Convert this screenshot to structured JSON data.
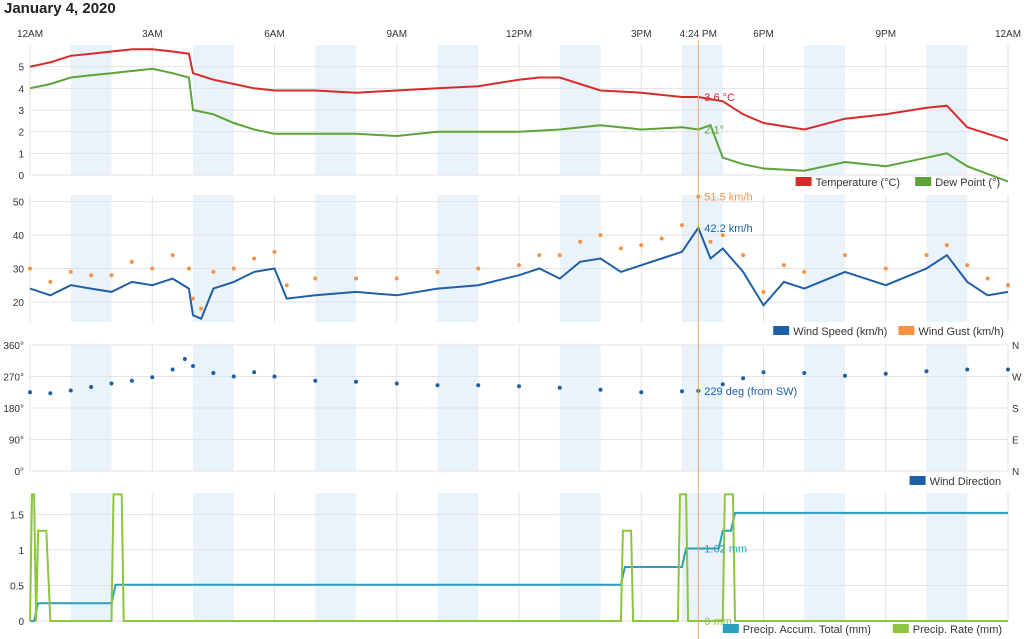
{
  "title": "January 4, 2020",
  "cursor": {
    "label": "4:24 PM",
    "hour": 16.4
  },
  "time_axis": {
    "ticks": [
      {
        "h": 0,
        "label": "12AM"
      },
      {
        "h": 3,
        "label": "3AM"
      },
      {
        "h": 6,
        "label": "6AM"
      },
      {
        "h": 9,
        "label": "9AM"
      },
      {
        "h": 12,
        "label": "12PM"
      },
      {
        "h": 15,
        "label": "3PM"
      },
      {
        "h": 18,
        "label": "6PM"
      },
      {
        "h": 21,
        "label": "9PM"
      },
      {
        "h": 24,
        "label": "12AM"
      }
    ]
  },
  "colors": {
    "temperature": "#d62b2b",
    "dew": "#5ea33a",
    "speed": "#1f5fa8",
    "gust": "#f59343",
    "direction": "#1f5fa8",
    "accum": "#2a9fbc",
    "rate": "#8cc63f",
    "cursor": "#f0a868",
    "band": "#eaf2fa",
    "grid": "#e3e3e3"
  },
  "chart_data": [
    {
      "type": "line",
      "name": "temperature-dewpoint",
      "ylim": [
        0,
        6
      ],
      "yticks": [
        "0",
        "1",
        "2",
        "3",
        "4",
        "5"
      ],
      "series": [
        {
          "name": "Temperature (°C)",
          "key": "temperature",
          "x": [
            0,
            0.5,
            1,
            1.5,
            2,
            2.5,
            3,
            3.5,
            3.9,
            4,
            4.5,
            5,
            5.5,
            6,
            7,
            8,
            9,
            10,
            11,
            12,
            12.5,
            13,
            14,
            15,
            16,
            16.4,
            17,
            17.5,
            18,
            19,
            20,
            21,
            22,
            22.5,
            23,
            24
          ],
          "y": [
            5,
            5.2,
            5.5,
            5.6,
            5.7,
            5.8,
            5.8,
            5.7,
            5.6,
            4.7,
            4.4,
            4.2,
            4.0,
            3.9,
            3.9,
            3.8,
            3.9,
            4.0,
            4.1,
            4.4,
            4.5,
            4.5,
            3.9,
            3.8,
            3.6,
            3.6,
            3.4,
            2.8,
            2.4,
            2.1,
            2.6,
            2.8,
            3.1,
            3.2,
            2.2,
            1.6
          ]
        },
        {
          "name": "Dew Point (°)",
          "key": "dew",
          "x": [
            0,
            0.5,
            1,
            1.5,
            2,
            2.5,
            3,
            3.5,
            3.9,
            4,
            4.5,
            5,
            5.5,
            6,
            7,
            8,
            9,
            10,
            11,
            12,
            13,
            14,
            15,
            16,
            16.4,
            16.7,
            17,
            17.5,
            18,
            19,
            20,
            21,
            22,
            22.5,
            23,
            24
          ],
          "y": [
            4.0,
            4.2,
            4.5,
            4.6,
            4.7,
            4.8,
            4.9,
            4.7,
            4.5,
            3.0,
            2.8,
            2.4,
            2.1,
            1.9,
            1.9,
            1.9,
            1.8,
            2.0,
            2.0,
            2.0,
            2.1,
            2.3,
            2.1,
            2.2,
            2.1,
            2.3,
            0.8,
            0.5,
            0.3,
            0.2,
            0.6,
            0.4,
            0.8,
            1.0,
            0.4,
            -0.3
          ]
        }
      ],
      "annotations": [
        {
          "series": "temperature",
          "text": "3.6 °C"
        },
        {
          "series": "dew",
          "text": "2.1°"
        }
      ]
    },
    {
      "type": "line",
      "name": "wind",
      "ylim": [
        14,
        52
      ],
      "yticks": [
        "20",
        "30",
        "40",
        "50"
      ],
      "series": [
        {
          "name": "Wind Speed (km/h)",
          "key": "speed",
          "x": [
            0,
            0.5,
            1,
            1.5,
            2,
            2.5,
            3,
            3.5,
            3.9,
            4,
            4.2,
            4.5,
            5,
            5.5,
            6,
            6.3,
            7,
            8,
            9,
            10,
            11,
            12,
            12.5,
            13,
            13.5,
            14,
            14.5,
            15,
            15.5,
            16,
            16.4,
            16.7,
            17,
            17.5,
            18,
            18.5,
            19,
            20,
            21,
            22,
            22.5,
            23,
            23.5,
            24
          ],
          "y": [
            24,
            22,
            25,
            24,
            23,
            26,
            25,
            27,
            24,
            16,
            15,
            24,
            26,
            29,
            30,
            21,
            22,
            23,
            22,
            24,
            25,
            28,
            30,
            27,
            32,
            33,
            29,
            31,
            33,
            35,
            42.2,
            33,
            36,
            29,
            19,
            26,
            24,
            29,
            25,
            30,
            34,
            26,
            22,
            23
          ]
        },
        {
          "name": "Wind Gust (km/h)",
          "key": "gust",
          "x": [
            0,
            0.5,
            1,
            1.5,
            2,
            2.5,
            3,
            3.5,
            3.9,
            4,
            4.2,
            4.5,
            5,
            5.5,
            6,
            6.3,
            7,
            8,
            9,
            10,
            11,
            12,
            12.5,
            13,
            13.5,
            14,
            14.5,
            15,
            15.5,
            16,
            16.4,
            16.7,
            17,
            17.5,
            18,
            18.5,
            19,
            20,
            21,
            22,
            22.5,
            23,
            23.5,
            24
          ],
          "y": [
            30,
            26,
            29,
            28,
            28,
            32,
            30,
            34,
            30,
            21,
            18,
            29,
            30,
            33,
            35,
            25,
            27,
            27,
            27,
            29,
            30,
            31,
            34,
            34,
            38,
            40,
            36,
            37,
            39,
            43,
            51.5,
            38,
            40,
            34,
            23,
            31,
            29,
            34,
            30,
            34,
            37,
            31,
            27,
            25
          ]
        }
      ],
      "annotations": [
        {
          "series": "gust",
          "text": "51.5 km/h"
        },
        {
          "series": "speed",
          "text": "42.2 km/h"
        }
      ]
    },
    {
      "type": "scatter",
      "name": "wind-direction",
      "ylim": [
        0,
        360
      ],
      "yticks": [
        "0°",
        "90°",
        "180°",
        "270°",
        "360°"
      ],
      "right_ticks": [
        "N",
        "E",
        "S",
        "W",
        "N"
      ],
      "series": [
        {
          "name": "Wind Direction",
          "key": "direction",
          "x": [
            0,
            0.5,
            1,
            1.5,
            2,
            2.5,
            3,
            3.5,
            3.8,
            4,
            4.5,
            5,
            5.5,
            6,
            7,
            8,
            9,
            10,
            11,
            12,
            13,
            14,
            15,
            16,
            16.4,
            17,
            17.5,
            18,
            19,
            20,
            21,
            22,
            23,
            24
          ],
          "y": [
            225,
            222,
            230,
            240,
            250,
            258,
            268,
            290,
            320,
            300,
            280,
            270,
            282,
            270,
            258,
            255,
            250,
            245,
            245,
            242,
            238,
            232,
            225,
            228,
            229,
            248,
            265,
            282,
            280,
            272,
            278,
            285,
            290,
            290
          ]
        }
      ],
      "annotations": [
        {
          "series": "direction",
          "text": "229 deg (from SW)"
        }
      ]
    },
    {
      "type": "line",
      "name": "precipitation",
      "ylim": [
        0,
        1.8
      ],
      "yticks": [
        "0",
        "0.5",
        "1",
        "1.5"
      ],
      "series": [
        {
          "name": "Precip. Accum. Total (mm)",
          "key": "accum",
          "x": [
            0,
            0.1,
            0.2,
            2.0,
            2.1,
            14.5,
            14.6,
            16.0,
            16.1,
            16.9,
            17.0,
            17.2,
            17.3,
            24
          ],
          "y": [
            0,
            0,
            0.25,
            0.25,
            0.51,
            0.51,
            0.76,
            0.76,
            1.02,
            1.02,
            1.27,
            1.27,
            1.52,
            1.52
          ]
        },
        {
          "name": "Precip. Rate (mm)",
          "key": "rate",
          "x": [
            0,
            0.05,
            0.1,
            0.15,
            0.2,
            0.3,
            0.4,
            0.5,
            0.55,
            2.0,
            2.05,
            2.15,
            2.25,
            2.3,
            14.5,
            14.55,
            14.65,
            14.75,
            14.8,
            15.9,
            15.95,
            16.05,
            16.1,
            16.15,
            17.0,
            17.05,
            17.15,
            17.25,
            17.3,
            24
          ],
          "y": [
            0,
            1.78,
            1.78,
            0,
            1.27,
            1.27,
            1.27,
            0,
            0,
            0,
            1.78,
            1.78,
            1.78,
            0,
            0,
            1.27,
            1.27,
            1.27,
            0,
            0,
            1.78,
            1.78,
            1.78,
            0,
            0,
            1.78,
            1.78,
            1.78,
            0,
            0
          ]
        }
      ],
      "annotations": [
        {
          "series": "accum",
          "text": "1.02 mm"
        },
        {
          "series": "rate",
          "text": "0 mm"
        }
      ]
    }
  ]
}
